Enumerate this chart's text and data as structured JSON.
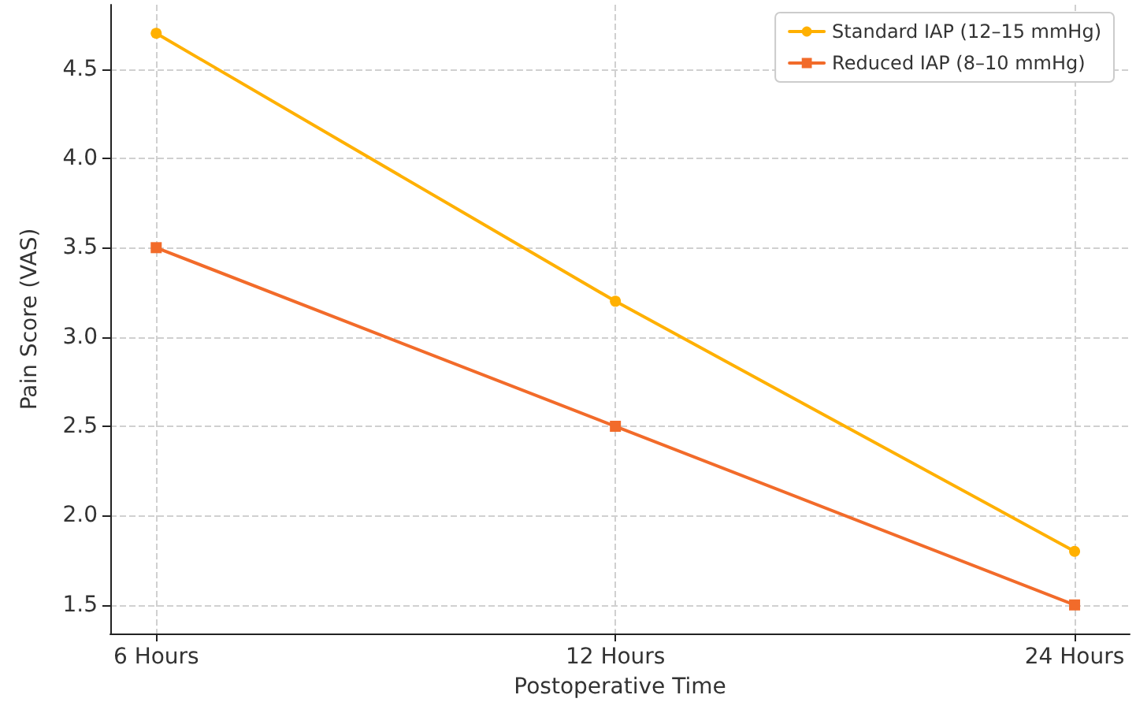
{
  "chart_data": {
    "type": "line",
    "xlabel": "Postoperative Time",
    "ylabel": "Pain Score (VAS)",
    "categories": [
      "6 Hours",
      "12 Hours",
      "24 Hours"
    ],
    "series": [
      {
        "name": "Standard IAP (12–15 mmHg)",
        "color": "#ffb000",
        "values": [
          4.7,
          3.2,
          1.8
        ],
        "marker": "circle"
      },
      {
        "name": "Reduced IAP (8–10 mmHg)",
        "color": "#f26b2a",
        "values": [
          3.5,
          2.5,
          1.5
        ],
        "marker": "square"
      }
    ],
    "ylim": [
      1.34,
      4.86
    ],
    "yticks": [
      {
        "value": 1.5,
        "label": "1.5"
      },
      {
        "value": 2.0,
        "label": "2.0"
      },
      {
        "value": 2.5,
        "label": "2.5"
      },
      {
        "value": 3.0,
        "label": "3.0"
      },
      {
        "value": 3.5,
        "label": "3.5"
      },
      {
        "value": 4.0,
        "label": "4.0"
      },
      {
        "value": 4.5,
        "label": "4.5"
      }
    ],
    "grid": true,
    "legend": "top right",
    "line_style": "solid"
  }
}
